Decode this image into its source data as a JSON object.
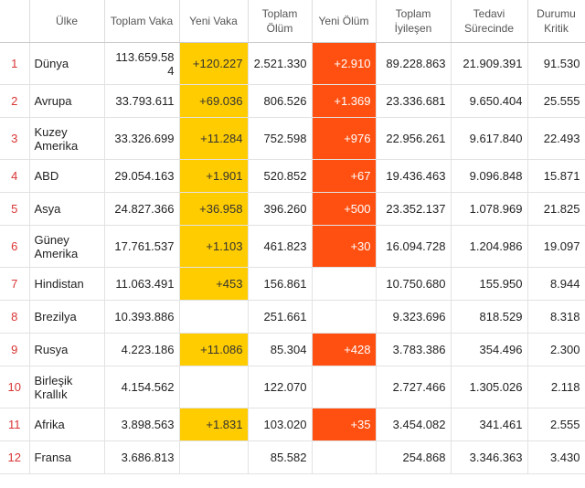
{
  "headers": {
    "country": "Ülke",
    "total_cases": "Toplam Vaka",
    "new_cases": "Yeni Vaka",
    "total_deaths": "Toplam Ölüm",
    "new_deaths": "Yeni Ölüm",
    "total_recovered": "Toplam İyileşen",
    "active": "Tedavi Sürecinde",
    "critical": "Durumu Kritik"
  },
  "rows": [
    {
      "rank": "1",
      "country": "Dünya",
      "total_cases": "113.659.584",
      "new_cases": "+120.227",
      "total_deaths": "2.521.330",
      "new_deaths": "+2.910",
      "recovered": "89.228.863",
      "active": "21.909.391",
      "critical": "91.530"
    },
    {
      "rank": "2",
      "country": "Avrupa",
      "total_cases": "33.793.611",
      "new_cases": "+69.036",
      "total_deaths": "806.526",
      "new_deaths": "+1.369",
      "recovered": "23.336.681",
      "active": "9.650.404",
      "critical": "25.555"
    },
    {
      "rank": "3",
      "country": "Kuzey Amerika",
      "total_cases": "33.326.699",
      "new_cases": "+11.284",
      "total_deaths": "752.598",
      "new_deaths": "+976",
      "recovered": "22.956.261",
      "active": "9.617.840",
      "critical": "22.493"
    },
    {
      "rank": "4",
      "country": "ABD",
      "total_cases": "29.054.163",
      "new_cases": "+1.901",
      "total_deaths": "520.852",
      "new_deaths": "+67",
      "recovered": "19.436.463",
      "active": "9.096.848",
      "critical": "15.871"
    },
    {
      "rank": "5",
      "country": "Asya",
      "total_cases": "24.827.366",
      "new_cases": "+36.958",
      "total_deaths": "396.260",
      "new_deaths": "+500",
      "recovered": "23.352.137",
      "active": "1.078.969",
      "critical": "21.825"
    },
    {
      "rank": "6",
      "country": "Güney Amerika",
      "total_cases": "17.761.537",
      "new_cases": "+1.103",
      "total_deaths": "461.823",
      "new_deaths": "+30",
      "recovered": "16.094.728",
      "active": "1.204.986",
      "critical": "19.097"
    },
    {
      "rank": "7",
      "country": "Hindistan",
      "total_cases": "11.063.491",
      "new_cases": "+453",
      "total_deaths": "156.861",
      "new_deaths": "",
      "recovered": "10.750.680",
      "active": "155.950",
      "critical": "8.944"
    },
    {
      "rank": "8",
      "country": "Brezilya",
      "total_cases": "10.393.886",
      "new_cases": "",
      "total_deaths": "251.661",
      "new_deaths": "",
      "recovered": "9.323.696",
      "active": "818.529",
      "critical": "8.318"
    },
    {
      "rank": "9",
      "country": "Rusya",
      "total_cases": "4.223.186",
      "new_cases": "+11.086",
      "total_deaths": "85.304",
      "new_deaths": "+428",
      "recovered": "3.783.386",
      "active": "354.496",
      "critical": "2.300"
    },
    {
      "rank": "10",
      "country": "Birleşik Krallık",
      "total_cases": "4.154.562",
      "new_cases": "",
      "total_deaths": "122.070",
      "new_deaths": "",
      "recovered": "2.727.466",
      "active": "1.305.026",
      "critical": "2.118"
    },
    {
      "rank": "11",
      "country": "Afrika",
      "total_cases": "3.898.563",
      "new_cases": "+1.831",
      "total_deaths": "103.020",
      "new_deaths": "+35",
      "recovered": "3.454.082",
      "active": "341.461",
      "critical": "2.555"
    },
    {
      "rank": "12",
      "country": "Fransa",
      "total_cases": "3.686.813",
      "new_cases": "",
      "total_deaths": "85.582",
      "new_deaths": "",
      "recovered": "254.868",
      "active": "3.346.363",
      "critical": "3.430"
    }
  ],
  "colors": {
    "new_cases_highlight": "#ffcc00",
    "new_deaths_highlight": "#ff5012",
    "rank_text": "#d93434"
  }
}
